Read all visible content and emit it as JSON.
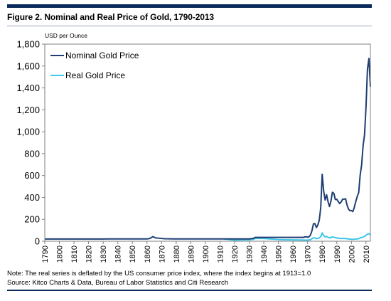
{
  "figure": {
    "title": "Figure 2. Nominal and Real Price of Gold, 1790-2013",
    "note": "Note: The real series is deflated by the US consumer price index, where the index begins at 1913=1.0",
    "source": "Source: Kitco Charts & Data, Bureau of Labor Statistics and Citi Research"
  },
  "colors": {
    "nominal": "#1f3e73",
    "real": "#3fc6e8",
    "frame": "#7f7f7f",
    "rule": "#0a2a5c"
  },
  "chart_data": {
    "type": "line",
    "title": "Figure 2. Nominal and Real Price of Gold, 1790-2013",
    "ylabel": "USD per Ounce",
    "xlabel": "",
    "xlim": [
      1790,
      2013
    ],
    "ylim": [
      0,
      1800
    ],
    "y_ticks": [
      0,
      200,
      400,
      600,
      800,
      1000,
      1200,
      1400,
      1600,
      1800
    ],
    "y_tick_labels": [
      "0",
      "200",
      "400",
      "600",
      "800",
      "1,000",
      "1,200",
      "1,400",
      "1,600",
      "1,800"
    ],
    "x_ticks": [
      1790,
      1800,
      1810,
      1820,
      1830,
      1840,
      1850,
      1860,
      1870,
      1880,
      1890,
      1900,
      1910,
      1920,
      1930,
      1940,
      1950,
      1960,
      1970,
      1980,
      1990,
      2000,
      2010
    ],
    "x_tick_labels": [
      "1790",
      "1800",
      "1810",
      "1820",
      "1830",
      "1840",
      "1850",
      "1860",
      "1870",
      "1880",
      "1890",
      "1900",
      "1910",
      "1920",
      "1930",
      "1940",
      "1950",
      "1960",
      "1970",
      "1980",
      "1990",
      "2000",
      "2010"
    ],
    "grid": false,
    "legend": "top-left",
    "series": [
      {
        "name": "Nominal Gold Price",
        "color": "#1f3e73",
        "points": [
          [
            1790,
            20
          ],
          [
            1800,
            20
          ],
          [
            1810,
            20
          ],
          [
            1820,
            20
          ],
          [
            1830,
            20
          ],
          [
            1834,
            21
          ],
          [
            1850,
            21
          ],
          [
            1860,
            21
          ],
          [
            1862,
            25
          ],
          [
            1864,
            42
          ],
          [
            1866,
            30
          ],
          [
            1868,
            28
          ],
          [
            1872,
            23
          ],
          [
            1879,
            21
          ],
          [
            1890,
            21
          ],
          [
            1900,
            21
          ],
          [
            1910,
            21
          ],
          [
            1920,
            21
          ],
          [
            1930,
            21
          ],
          [
            1933,
            26
          ],
          [
            1934,
            35
          ],
          [
            1940,
            35
          ],
          [
            1950,
            35
          ],
          [
            1960,
            35
          ],
          [
            1967,
            35
          ],
          [
            1968,
            39
          ],
          [
            1969,
            41
          ],
          [
            1970,
            36
          ],
          [
            1971,
            41
          ],
          [
            1972,
            58
          ],
          [
            1973,
            97
          ],
          [
            1974,
            159
          ],
          [
            1975,
            161
          ],
          [
            1976,
            125
          ],
          [
            1977,
            148
          ],
          [
            1978,
            193
          ],
          [
            1979,
            307
          ],
          [
            1980,
            612
          ],
          [
            1981,
            460
          ],
          [
            1982,
            376
          ],
          [
            1983,
            424
          ],
          [
            1984,
            361
          ],
          [
            1985,
            317
          ],
          [
            1986,
            368
          ],
          [
            1987,
            447
          ],
          [
            1988,
            437
          ],
          [
            1989,
            381
          ],
          [
            1990,
            383
          ],
          [
            1991,
            362
          ],
          [
            1992,
            344
          ],
          [
            1993,
            360
          ],
          [
            1994,
            384
          ],
          [
            1995,
            384
          ],
          [
            1996,
            388
          ],
          [
            1997,
            331
          ],
          [
            1998,
            294
          ],
          [
            1999,
            279
          ],
          [
            2000,
            279
          ],
          [
            2001,
            271
          ],
          [
            2002,
            310
          ],
          [
            2003,
            363
          ],
          [
            2004,
            409
          ],
          [
            2005,
            445
          ],
          [
            2006,
            604
          ],
          [
            2007,
            696
          ],
          [
            2008,
            872
          ],
          [
            2009,
            972
          ],
          [
            2010,
            1225
          ],
          [
            2011,
            1572
          ],
          [
            2012,
            1669
          ],
          [
            2013,
            1411
          ]
        ]
      },
      {
        "name": "Real Gold Price",
        "color": "#3fc6e8",
        "points": [
          [
            1913,
            20
          ],
          [
            1920,
            10
          ],
          [
            1925,
            12
          ],
          [
            1930,
            13
          ],
          [
            1933,
            18
          ],
          [
            1934,
            25
          ],
          [
            1940,
            25
          ],
          [
            1945,
            20
          ],
          [
            1950,
            15
          ],
          [
            1955,
            13
          ],
          [
            1960,
            12
          ],
          [
            1965,
            11
          ],
          [
            1970,
            10
          ],
          [
            1972,
            14
          ],
          [
            1974,
            32
          ],
          [
            1975,
            31
          ],
          [
            1976,
            23
          ],
          [
            1978,
            30
          ],
          [
            1979,
            42
          ],
          [
            1980,
            76
          ],
          [
            1981,
            52
          ],
          [
            1982,
            40
          ],
          [
            1983,
            43
          ],
          [
            1985,
            30
          ],
          [
            1987,
            39
          ],
          [
            1988,
            36
          ],
          [
            1990,
            30
          ],
          [
            1992,
            25
          ],
          [
            1994,
            26
          ],
          [
            1996,
            25
          ],
          [
            1998,
            20
          ],
          [
            2000,
            18
          ],
          [
            2001,
            17
          ],
          [
            2003,
            20
          ],
          [
            2005,
            23
          ],
          [
            2006,
            30
          ],
          [
            2008,
            38
          ],
          [
            2009,
            45
          ],
          [
            2010,
            53
          ],
          [
            2011,
            66
          ],
          [
            2012,
            69
          ],
          [
            2013,
            57
          ]
        ]
      }
    ]
  }
}
